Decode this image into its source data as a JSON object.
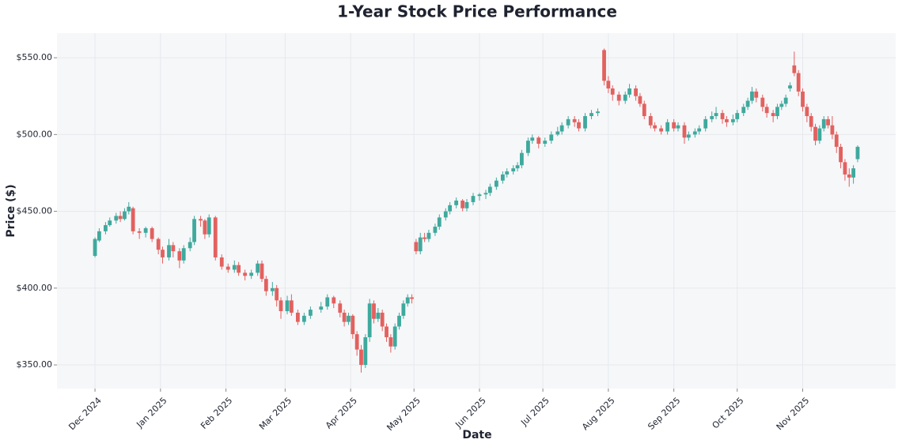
{
  "chart_data": {
    "type": "candlestick",
    "title": "1-Year Stock Price Performance",
    "x_label": "Date",
    "y_label": "Price ($)",
    "xlim": [
      -18,
      379
    ],
    "ylim": [
      334.6,
      566
    ],
    "xticks": [
      {
        "value": 0,
        "label": "Dec 2024"
      },
      {
        "value": 31,
        "label": "Jan 2025"
      },
      {
        "value": 62,
        "label": "Feb 2025"
      },
      {
        "value": 90,
        "label": "Mar 2025"
      },
      {
        "value": 121,
        "label": "Apr 2025"
      },
      {
        "value": 151,
        "label": "May 2025"
      },
      {
        "value": 182,
        "label": "Jun 2025"
      },
      {
        "value": 212,
        "label": "Jul 2025"
      },
      {
        "value": 243,
        "label": "Aug 2025"
      },
      {
        "value": 274,
        "label": "Sep 2025"
      },
      {
        "value": 304,
        "label": "Oct 2025"
      },
      {
        "value": 335,
        "label": "Nov 2025"
      }
    ],
    "yticks": [
      {
        "value": 350,
        "label": "$350.00"
      },
      {
        "value": 400,
        "label": "$400.00"
      },
      {
        "value": 450,
        "label": "$450.00"
      },
      {
        "value": 500,
        "label": "$500.00"
      },
      {
        "value": 550,
        "label": "$550.00"
      }
    ],
    "grid": true,
    "up_color": "#3fa99d",
    "down_color": "#e2615f",
    "x": [
      0,
      2,
      5,
      7,
      10,
      12,
      14,
      16,
      18,
      21,
      24,
      27,
      30,
      32,
      35,
      37,
      40,
      42,
      45,
      47,
      50,
      52,
      54,
      57,
      60,
      63,
      66,
      68,
      71,
      74,
      77,
      79,
      81,
      84,
      86,
      88,
      91,
      93,
      96,
      99,
      102,
      107,
      110,
      113,
      116,
      118,
      120,
      122,
      124,
      126,
      128,
      130,
      132,
      134,
      136,
      138,
      140,
      142,
      144,
      146,
      148,
      150,
      152,
      154,
      156,
      158,
      161,
      163,
      166,
      168,
      171,
      174,
      176,
      179,
      182,
      185,
      187,
      190,
      193,
      195,
      198,
      200,
      202,
      205,
      207,
      210,
      213,
      216,
      219,
      221,
      224,
      227,
      229,
      232,
      235,
      238,
      241,
      243,
      245,
      248,
      251,
      253,
      256,
      258,
      260,
      263,
      265,
      268,
      271,
      274,
      276,
      279,
      281,
      284,
      286,
      289,
      292,
      294,
      297,
      299,
      302,
      304,
      307,
      309,
      311,
      313,
      316,
      318,
      321,
      323,
      325,
      327,
      329,
      331,
      333,
      335,
      337,
      339,
      341,
      343,
      345,
      347,
      349,
      351,
      353,
      355,
      357,
      359,
      361
    ],
    "open": [
      421,
      431,
      437,
      441,
      444,
      447,
      445,
      450,
      452,
      437,
      436,
      439,
      432,
      425,
      420,
      428,
      424,
      418,
      426,
      430,
      445,
      444,
      435,
      446,
      420,
      414,
      412,
      415,
      410,
      408,
      410,
      416,
      406,
      398,
      400,
      392,
      385,
      392,
      384,
      378,
      382,
      386,
      388,
      394,
      390,
      384,
      378,
      382,
      370,
      360,
      350,
      368,
      390,
      380,
      384,
      375,
      368,
      362,
      375,
      382,
      390,
      394,
      430,
      424,
      433,
      432,
      436,
      440,
      446,
      450,
      454,
      457,
      452,
      456,
      460,
      461,
      462,
      466,
      470,
      474,
      476,
      478,
      480,
      488,
      496,
      498,
      494,
      496,
      500,
      502,
      506,
      510,
      508,
      504,
      512,
      514,
      555,
      535,
      530,
      526,
      522,
      526,
      530,
      525,
      520,
      512,
      506,
      504,
      502,
      508,
      504,
      506,
      498,
      500,
      502,
      504,
      510,
      512,
      514,
      510,
      508,
      510,
      514,
      518,
      522,
      528,
      524,
      518,
      514,
      512,
      518,
      520,
      530,
      545,
      540,
      528,
      518,
      512,
      505,
      496,
      504,
      510,
      506,
      500,
      492,
      482,
      474,
      472,
      484
    ],
    "high": [
      433,
      439,
      443,
      446,
      449,
      450,
      452,
      456,
      453,
      439,
      440,
      440,
      433,
      427,
      432,
      430,
      426,
      428,
      433,
      447,
      447,
      445,
      448,
      447,
      422,
      416,
      418,
      417,
      412,
      412,
      418,
      418,
      408,
      404,
      402,
      394,
      395,
      396,
      386,
      384,
      388,
      391,
      396,
      395,
      392,
      386,
      384,
      383,
      372,
      363,
      370,
      393,
      392,
      387,
      386,
      377,
      370,
      377,
      384,
      392,
      396,
      396,
      432,
      436,
      436,
      438,
      442,
      448,
      452,
      456,
      459,
      458,
      458,
      462,
      462,
      464,
      468,
      472,
      476,
      478,
      480,
      482,
      490,
      498,
      500,
      499,
      498,
      502,
      505,
      508,
      512,
      512,
      510,
      514,
      516,
      517,
      556,
      538,
      532,
      528,
      528,
      533,
      532,
      527,
      522,
      514,
      508,
      506,
      510,
      510,
      508,
      508,
      502,
      504,
      506,
      512,
      515,
      518,
      516,
      512,
      513,
      516,
      520,
      524,
      531,
      530,
      526,
      520,
      516,
      520,
      522,
      526,
      534,
      554,
      542,
      530,
      520,
      514,
      507,
      506,
      512,
      512,
      512,
      502,
      494,
      484,
      478,
      480,
      493
    ],
    "low": [
      420,
      430,
      435,
      440,
      442,
      443,
      444,
      448,
      435,
      432,
      433,
      430,
      422,
      416,
      418,
      420,
      413,
      416,
      424,
      428,
      440,
      432,
      433,
      418,
      412,
      410,
      410,
      408,
      405,
      406,
      408,
      404,
      395,
      395,
      388,
      380,
      383,
      382,
      376,
      376,
      380,
      384,
      386,
      387,
      381,
      375,
      376,
      367,
      356,
      345,
      348,
      365,
      377,
      378,
      372,
      365,
      358,
      360,
      373,
      380,
      388,
      390,
      422,
      422,
      430,
      430,
      434,
      438,
      444,
      448,
      452,
      450,
      450,
      454,
      457,
      458,
      460,
      464,
      468,
      472,
      474,
      476,
      478,
      486,
      494,
      491,
      492,
      494,
      499,
      500,
      504,
      505,
      502,
      502,
      510,
      512,
      532,
      527,
      522,
      519,
      520,
      524,
      522,
      518,
      510,
      504,
      502,
      500,
      500,
      502,
      502,
      494,
      496,
      498,
      500,
      502,
      508,
      510,
      507,
      505,
      506,
      508,
      512,
      516,
      520,
      521,
      515,
      511,
      508,
      510,
      516,
      518,
      528,
      538,
      525,
      515,
      508,
      502,
      493,
      494,
      502,
      504,
      497,
      488,
      478,
      470,
      466,
      468,
      482
    ],
    "close": [
      432,
      437,
      441,
      444,
      447,
      445,
      450,
      453,
      437,
      436,
      439,
      432,
      425,
      420,
      428,
      424,
      418,
      426,
      430,
      445,
      444,
      435,
      446,
      420,
      414,
      412,
      415,
      410,
      408,
      410,
      416,
      406,
      398,
      400,
      392,
      385,
      392,
      384,
      378,
      382,
      386,
      388,
      394,
      390,
      384,
      378,
      382,
      370,
      360,
      350,
      368,
      390,
      380,
      384,
      375,
      368,
      362,
      375,
      382,
      390,
      394,
      393,
      424,
      433,
      432,
      436,
      440,
      446,
      450,
      454,
      457,
      452,
      456,
      460,
      461,
      462,
      466,
      470,
      474,
      476,
      478,
      480,
      488,
      496,
      498,
      494,
      496,
      500,
      502,
      506,
      510,
      508,
      504,
      512,
      514,
      515,
      535,
      530,
      526,
      522,
      526,
      530,
      525,
      520,
      512,
      506,
      504,
      502,
      508,
      504,
      506,
      498,
      500,
      502,
      504,
      510,
      512,
      514,
      510,
      508,
      510,
      514,
      518,
      522,
      528,
      524,
      518,
      514,
      512,
      518,
      520,
      524,
      532,
      540,
      528,
      518,
      512,
      505,
      496,
      504,
      510,
      506,
      500,
      492,
      482,
      474,
      472,
      478,
      492
    ]
  }
}
